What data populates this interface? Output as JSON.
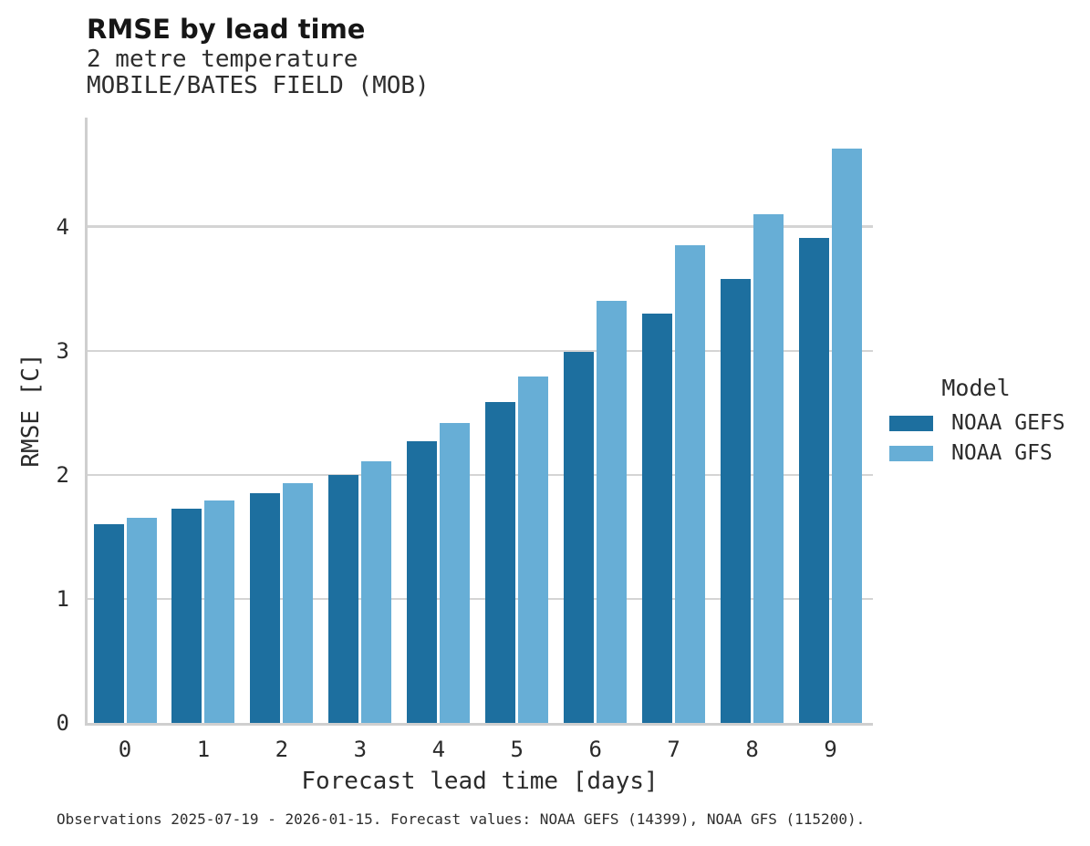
{
  "header": {
    "title": "RMSE by lead time",
    "subtitle_lines": [
      "2 metre temperature",
      "MOBILE/BATES FIELD (MOB)"
    ]
  },
  "chart_data": {
    "type": "bar",
    "title": "RMSE by lead time",
    "subtitle": "2 metre temperature MOBILE/BATES FIELD (MOB)",
    "categories": [
      "0",
      "1",
      "2",
      "3",
      "4",
      "5",
      "6",
      "7",
      "8",
      "9"
    ],
    "series": [
      {
        "name": "NOAA GEFS",
        "color": "#1d6f9f",
        "values": [
          1.6,
          1.73,
          1.85,
          2.0,
          2.27,
          2.59,
          2.99,
          3.3,
          3.58,
          3.91
        ]
      },
      {
        "name": "NOAA GFS",
        "color": "#67aed6",
        "values": [
          1.65,
          1.79,
          1.93,
          2.11,
          2.42,
          2.79,
          3.4,
          3.85,
          4.1,
          4.63
        ]
      }
    ],
    "xlabel": "Forecast lead time [days]",
    "ylabel": "RMSE [C]",
    "yticks": [
      0,
      1,
      2,
      3,
      4
    ],
    "ylim": [
      0,
      4.88
    ],
    "grid": true,
    "legend_title": "Model",
    "legend_position": "right",
    "colors": {
      "gridline": "#d4d4d4",
      "axis": "#cfcfcf",
      "text": "#2b2b2b"
    }
  },
  "caption": {
    "text": "Observations 2025-07-19 - 2026-01-15. Forecast values: NOAA GEFS (14399), NOAA GFS (115200)."
  }
}
